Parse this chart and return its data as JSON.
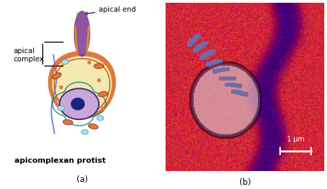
{
  "panel_a_label": "(a)",
  "panel_b_label": "(b)",
  "label_apical_complex": "apical\ncomplex",
  "label_apical_end": "apical end",
  "label_organism": "apicomplexan protist",
  "scale_bar_text": "1 μm",
  "bg_color": "#ffffff",
  "illustration_bg": "#ffffff",
  "cell_outer_color": "#e07840",
  "cell_fill_color": "#f5e8b0",
  "apical_purple": "#7b3f8c",
  "nucleus_fill": "#7b5ea7",
  "nucleus_outline": "#4a3070",
  "nucleolus_color": "#1a237e",
  "inner_membrane_color": "#c06820",
  "annotation_color": "#000000",
  "font_size_labels": 7.5,
  "font_size_captions": 8.5,
  "font_size_organism": 8.0
}
